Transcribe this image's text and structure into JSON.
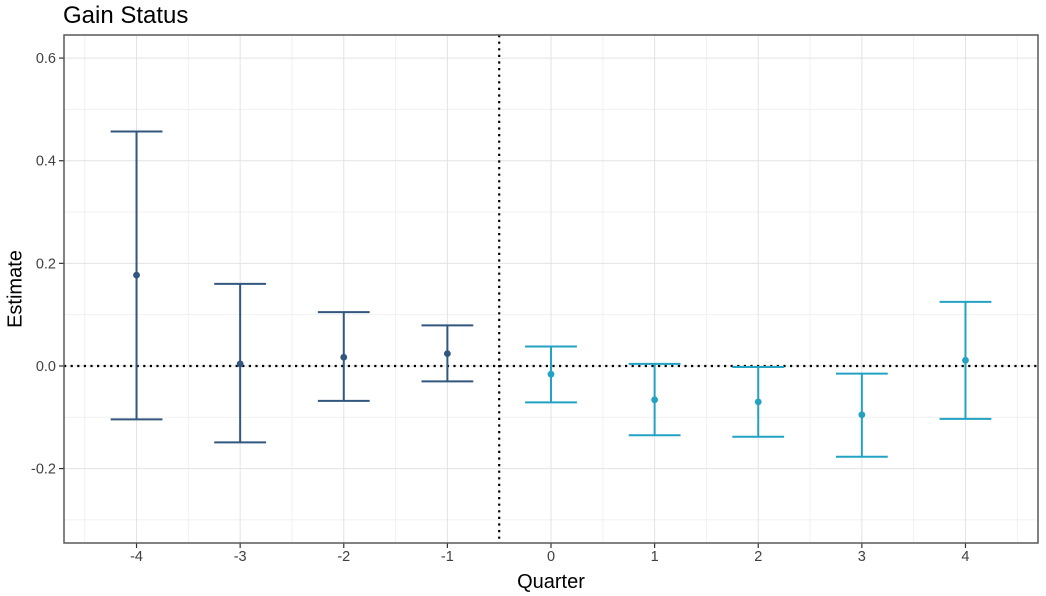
{
  "chart_data": {
    "type": "scatter",
    "subtype": "errorbar-pointrange",
    "title": "Gain Status",
    "xlabel": "Quarter",
    "ylabel": "Estimate",
    "xlim": [
      -4.7,
      4.7
    ],
    "ylim": [
      -0.345,
      0.645
    ],
    "grid": true,
    "legend_position": "none",
    "x_major_ticks": [
      {
        "value": -4,
        "label": "-4"
      },
      {
        "value": -3,
        "label": "-3"
      },
      {
        "value": -2,
        "label": "-2"
      },
      {
        "value": -1,
        "label": "-1"
      },
      {
        "value": 0,
        "label": "0"
      },
      {
        "value": 1,
        "label": "1"
      },
      {
        "value": 2,
        "label": "2"
      },
      {
        "value": 3,
        "label": "3"
      },
      {
        "value": 4,
        "label": "4"
      }
    ],
    "y_major_ticks": [
      {
        "value": -0.2,
        "label": "-0.2"
      },
      {
        "value": 0.0,
        "label": "0.0"
      },
      {
        "value": 0.2,
        "label": "0.2"
      },
      {
        "value": 0.4,
        "label": "0.4"
      },
      {
        "value": 0.6,
        "label": "0.6"
      }
    ],
    "x_minor_ticks": [
      -4.5,
      -3.5,
      -2.5,
      -1.5,
      -0.5,
      0.5,
      1.5,
      2.5,
      3.5,
      4.5
    ],
    "y_minor_ticks": [
      -0.3,
      -0.1,
      0.1,
      0.3,
      0.5
    ],
    "reference_lines": [
      {
        "orientation": "horizontal",
        "value": 0,
        "style": "dotted",
        "color": "#000000"
      },
      {
        "orientation": "vertical",
        "value": -0.5,
        "style": "dotted",
        "color": "#000000"
      }
    ],
    "cap_half_width": 0.25,
    "series": [
      {
        "name": "navy-pre-period",
        "color": "#31577E",
        "points": [
          {
            "x": -4,
            "estimate": 0.177,
            "ci_low": -0.104,
            "ci_high": 0.457
          },
          {
            "x": -3,
            "estimate": 0.004,
            "ci_low": -0.149,
            "ci_high": 0.16
          },
          {
            "x": -2,
            "estimate": 0.017,
            "ci_low": -0.068,
            "ci_high": 0.105
          },
          {
            "x": -1,
            "estimate": 0.024,
            "ci_low": -0.03,
            "ci_high": 0.079
          }
        ]
      },
      {
        "name": "teal-post-period",
        "color": "#23A2C3",
        "points": [
          {
            "x": 0,
            "estimate": -0.016,
            "ci_low": -0.071,
            "ci_high": 0.038
          },
          {
            "x": 1,
            "estimate": -0.066,
            "ci_low": -0.135,
            "ci_high": 0.004
          },
          {
            "x": 2,
            "estimate": -0.07,
            "ci_low": -0.138,
            "ci_high": -0.002
          },
          {
            "x": 3,
            "estimate": -0.095,
            "ci_low": -0.177,
            "ci_high": -0.015
          },
          {
            "x": 4,
            "estimate": 0.011,
            "ci_low": -0.103,
            "ci_high": 0.125
          }
        ]
      }
    ],
    "colors": {
      "grid_major": "#e3e3e3",
      "grid_minor": "#f1f1f1",
      "panel_border": "#595959",
      "tick_mark": "#333333",
      "tick_label": "#404040",
      "axis_label": "#000000",
      "title": "#000000",
      "panel_background": "#ffffff"
    }
  }
}
